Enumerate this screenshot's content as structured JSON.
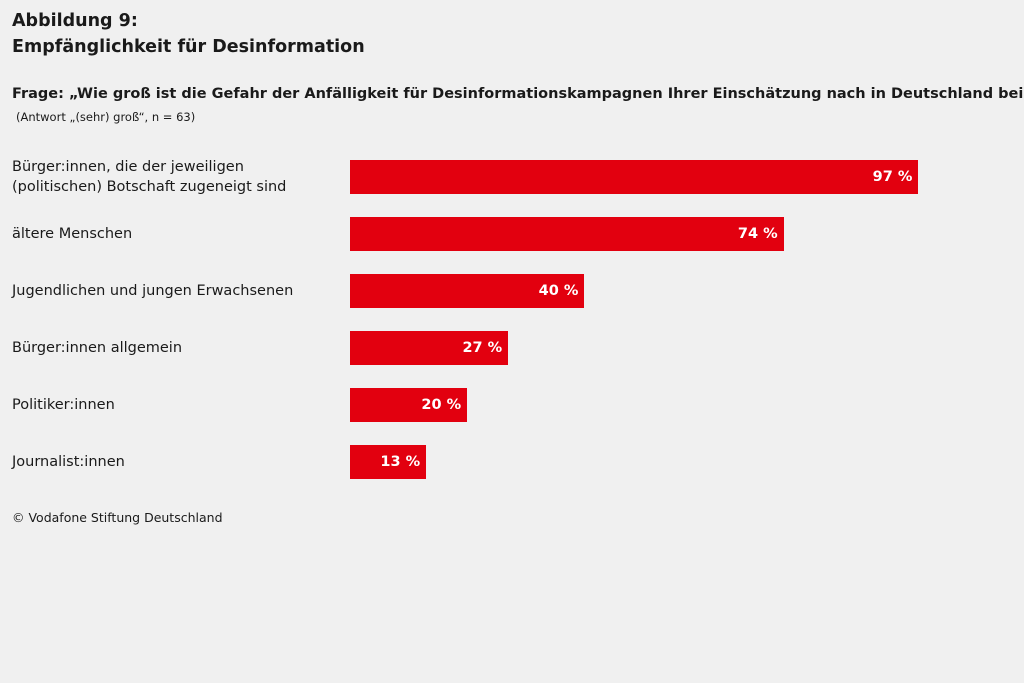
{
  "figure": {
    "number": "Abbildung 9:",
    "title": "Empfänglichkeit für Desinformation"
  },
  "question": "Frage: „Wie groß ist die Gefahr der Anfälligkeit für Desinformationskampagnen Ihrer Einschätzung nach in Deutschland bei …“",
  "answer_note": "(Antwort „(sehr) groß“, n = 63)",
  "source": "© Vodafone Stiftung Deutschland",
  "colors": {
    "bar": "#e2000f",
    "background": "#f0f0f0",
    "bar_value_text": "#ffffff"
  },
  "chart_data": {
    "type": "bar",
    "orientation": "horizontal",
    "title": "Empfänglichkeit für Desinformation",
    "categories": [
      "Bürger:innen, die der jeweiligen\n(politischen) Botschaft zugeneigt sind",
      "ältere Menschen",
      "Jugendlichen und jungen Erwachsenen",
      "Bürger:innen allgemein",
      "Politiker:innen",
      "Journalist:innen"
    ],
    "values": [
      97,
      74,
      40,
      27,
      20,
      13
    ],
    "value_labels": [
      "97 %",
      "74 %",
      "40 %",
      "27 %",
      "20 %",
      "13 %"
    ],
    "unit": "%",
    "xlim": [
      0,
      100
    ],
    "grid": false,
    "legend": "none"
  }
}
